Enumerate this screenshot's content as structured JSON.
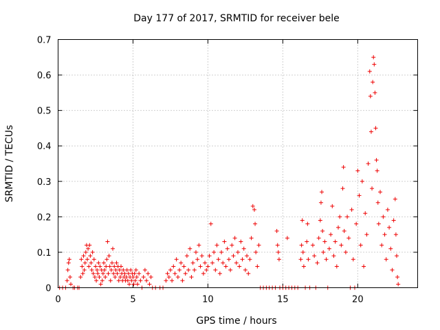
{
  "chart_data": {
    "type": "scatter",
    "title": "Day 177 of 2017, SRMTID for receiver bele",
    "xlabel": "GPS time / hours",
    "ylabel": "SRMTID / TECUs",
    "xlim": [
      0,
      24
    ],
    "ylim": [
      0,
      0.7
    ],
    "xticks": [
      "0",
      "5",
      "10",
      "15",
      "20"
    ],
    "xtick_values": [
      0,
      5,
      10,
      15,
      20
    ],
    "yticks": [
      "0",
      "0.1",
      "0.2",
      "0.3",
      "0.4",
      "0.5",
      "0.6",
      "0.7"
    ],
    "ytick_values": [
      0,
      0.1,
      0.2,
      0.3,
      0.4,
      0.5,
      0.6,
      0.7
    ],
    "grid": true,
    "marker": "+",
    "color": "#ee0000",
    "series": [
      {
        "name": "SRMTID",
        "points": [
          [
            0.1,
            0.0
          ],
          [
            0.3,
            0.0
          ],
          [
            0.5,
            0.0
          ],
          [
            0.6,
            0.02
          ],
          [
            0.65,
            0.05
          ],
          [
            0.7,
            0.07
          ],
          [
            0.75,
            0.08
          ],
          [
            0.8,
            0.03
          ],
          [
            0.85,
            0.01
          ],
          [
            1.0,
            0.0
          ],
          [
            1.1,
            0.0
          ],
          [
            1.3,
            0.0
          ],
          [
            1.4,
            0.0
          ],
          [
            1.5,
            0.03
          ],
          [
            1.55,
            0.08
          ],
          [
            1.6,
            0.06
          ],
          [
            1.65,
            0.04
          ],
          [
            1.7,
            0.09
          ],
          [
            1.75,
            0.05
          ],
          [
            1.8,
            0.07
          ],
          [
            1.85,
            0.1
          ],
          [
            1.9,
            0.12
          ],
          [
            1.95,
            0.08
          ],
          [
            2.0,
            0.11
          ],
          [
            2.05,
            0.06
          ],
          [
            2.1,
            0.12
          ],
          [
            2.15,
            0.09
          ],
          [
            2.2,
            0.07
          ],
          [
            2.25,
            0.05
          ],
          [
            2.3,
            0.1
          ],
          [
            2.35,
            0.04
          ],
          [
            2.4,
            0.08
          ],
          [
            2.45,
            0.03
          ],
          [
            2.5,
            0.06
          ],
          [
            2.55,
            0.02
          ],
          [
            2.6,
            0.05
          ],
          [
            2.65,
            0.04
          ],
          [
            2.7,
            0.07
          ],
          [
            2.75,
            0.03
          ],
          [
            2.8,
            0.06
          ],
          [
            2.85,
            0.01
          ],
          [
            2.9,
            0.05
          ],
          [
            2.95,
            0.02
          ],
          [
            3.0,
            0.04
          ],
          [
            3.05,
            0.07
          ],
          [
            3.1,
            0.05
          ],
          [
            3.15,
            0.03
          ],
          [
            3.2,
            0.06
          ],
          [
            3.25,
            0.08
          ],
          [
            3.3,
            0.13
          ],
          [
            3.35,
            0.04
          ],
          [
            3.4,
            0.09
          ],
          [
            3.45,
            0.06
          ],
          [
            3.5,
            0.02
          ],
          [
            3.55,
            0.05
          ],
          [
            3.6,
            0.07
          ],
          [
            3.65,
            0.11
          ],
          [
            3.7,
            0.04
          ],
          [
            3.75,
            0.06
          ],
          [
            3.8,
            0.03
          ],
          [
            3.85,
            0.05
          ],
          [
            3.9,
            0.07
          ],
          [
            3.95,
            0.04
          ],
          [
            4.0,
            0.06
          ],
          [
            4.05,
            0.02
          ],
          [
            4.1,
            0.05
          ],
          [
            4.15,
            0.03
          ],
          [
            4.2,
            0.06
          ],
          [
            4.25,
            0.04
          ],
          [
            4.3,
            0.02
          ],
          [
            4.35,
            0.05
          ],
          [
            4.4,
            0.03
          ],
          [
            4.45,
            0.04
          ],
          [
            4.5,
            0.02
          ],
          [
            4.55,
            0.03
          ],
          [
            4.6,
            0.05
          ],
          [
            4.65,
            0.02
          ],
          [
            4.7,
            0.04
          ],
          [
            4.75,
            0.01
          ],
          [
            4.8,
            0.03
          ],
          [
            4.85,
            0.05
          ],
          [
            4.9,
            0.02
          ],
          [
            4.95,
            0.04
          ],
          [
            5.0,
            0.03
          ],
          [
            5.05,
            0.01
          ],
          [
            5.1,
            0.04
          ],
          [
            5.15,
            0.02
          ],
          [
            5.2,
            0.05
          ],
          [
            5.25,
            0.03
          ],
          [
            5.3,
            0.01
          ],
          [
            5.4,
            0.04
          ],
          [
            5.5,
            0.02
          ],
          [
            5.6,
            0.0
          ],
          [
            5.7,
            0.03
          ],
          [
            5.8,
            0.05
          ],
          [
            5.9,
            0.02
          ],
          [
            6.0,
            0.04
          ],
          [
            6.1,
            0.01
          ],
          [
            6.2,
            0.03
          ],
          [
            6.3,
            0.0
          ],
          [
            6.5,
            0.0
          ],
          [
            6.8,
            0.0
          ],
          [
            7.0,
            0.0
          ],
          [
            7.2,
            0.02
          ],
          [
            7.3,
            0.04
          ],
          [
            7.4,
            0.03
          ],
          [
            7.5,
            0.05
          ],
          [
            7.6,
            0.02
          ],
          [
            7.7,
            0.06
          ],
          [
            7.8,
            0.04
          ],
          [
            7.9,
            0.08
          ],
          [
            8.0,
            0.03
          ],
          [
            8.1,
            0.05
          ],
          [
            8.2,
            0.07
          ],
          [
            8.3,
            0.02
          ],
          [
            8.4,
            0.06
          ],
          [
            8.5,
            0.04
          ],
          [
            8.6,
            0.09
          ],
          [
            8.7,
            0.05
          ],
          [
            8.8,
            0.11
          ],
          [
            8.9,
            0.03
          ],
          [
            9.0,
            0.07
          ],
          [
            9.1,
            0.05
          ],
          [
            9.2,
            0.1
          ],
          [
            9.3,
            0.08
          ],
          [
            9.4,
            0.12
          ],
          [
            9.5,
            0.06
          ],
          [
            9.6,
            0.09
          ],
          [
            9.7,
            0.04
          ],
          [
            9.8,
            0.07
          ],
          [
            9.9,
            0.05
          ],
          [
            10.0,
            0.06
          ],
          [
            10.1,
            0.09
          ],
          [
            10.2,
            0.18
          ],
          [
            10.3,
            0.07
          ],
          [
            10.4,
            0.1
          ],
          [
            10.5,
            0.05
          ],
          [
            10.6,
            0.12
          ],
          [
            10.7,
            0.08
          ],
          [
            10.8,
            0.04
          ],
          [
            10.9,
            0.1
          ],
          [
            11.0,
            0.07
          ],
          [
            11.1,
            0.13
          ],
          [
            11.2,
            0.06
          ],
          [
            11.3,
            0.11
          ],
          [
            11.4,
            0.08
          ],
          [
            11.5,
            0.05
          ],
          [
            11.6,
            0.12
          ],
          [
            11.7,
            0.09
          ],
          [
            11.8,
            0.14
          ],
          [
            11.9,
            0.07
          ],
          [
            12.0,
            0.1
          ],
          [
            12.1,
            0.06
          ],
          [
            12.2,
            0.13
          ],
          [
            12.3,
            0.08
          ],
          [
            12.4,
            0.11
          ],
          [
            12.5,
            0.05
          ],
          [
            12.6,
            0.09
          ],
          [
            12.7,
            0.04
          ],
          [
            12.8,
            0.08
          ],
          [
            12.9,
            0.14
          ],
          [
            13.0,
            0.23
          ],
          [
            13.1,
            0.22
          ],
          [
            13.15,
            0.18
          ],
          [
            13.2,
            0.1
          ],
          [
            13.3,
            0.06
          ],
          [
            13.4,
            0.12
          ],
          [
            13.5,
            0.0
          ],
          [
            13.7,
            0.0
          ],
          [
            13.9,
            0.0
          ],
          [
            14.1,
            0.0
          ],
          [
            14.3,
            0.0
          ],
          [
            14.5,
            0.0
          ],
          [
            14.6,
            0.16
          ],
          [
            14.65,
            0.12
          ],
          [
            14.7,
            0.1
          ],
          [
            14.75,
            0.08
          ],
          [
            14.8,
            0.0
          ],
          [
            15.0,
            0.0
          ],
          [
            15.2,
            0.0
          ],
          [
            15.3,
            0.14
          ],
          [
            15.4,
            0.0
          ],
          [
            15.6,
            0.0
          ],
          [
            15.8,
            0.0
          ],
          [
            16.0,
            0.0
          ],
          [
            16.2,
            0.08
          ],
          [
            16.25,
            0.12
          ],
          [
            16.3,
            0.19
          ],
          [
            16.35,
            0.1
          ],
          [
            16.4,
            0.06
          ],
          [
            16.5,
            0.0
          ],
          [
            16.6,
            0.13
          ],
          [
            16.65,
            0.18
          ],
          [
            16.7,
            0.08
          ],
          [
            16.8,
            0.0
          ],
          [
            17.0,
            0.12
          ],
          [
            17.1,
            0.09
          ],
          [
            17.2,
            0.0
          ],
          [
            17.3,
            0.07
          ],
          [
            17.4,
            0.14
          ],
          [
            17.5,
            0.19
          ],
          [
            17.55,
            0.24
          ],
          [
            17.6,
            0.27
          ],
          [
            17.65,
            0.16
          ],
          [
            17.7,
            0.1
          ],
          [
            17.8,
            0.13
          ],
          [
            17.9,
            0.08
          ],
          [
            18.0,
            0.0
          ],
          [
            18.1,
            0.11
          ],
          [
            18.2,
            0.15
          ],
          [
            18.3,
            0.23
          ],
          [
            18.4,
            0.09
          ],
          [
            18.5,
            0.13
          ],
          [
            18.6,
            0.06
          ],
          [
            18.7,
            0.17
          ],
          [
            18.8,
            0.2
          ],
          [
            18.9,
            0.12
          ],
          [
            19.0,
            0.28
          ],
          [
            19.05,
            0.34
          ],
          [
            19.1,
            0.16
          ],
          [
            19.2,
            0.1
          ],
          [
            19.3,
            0.2
          ],
          [
            19.4,
            0.14
          ],
          [
            19.5,
            0.0
          ],
          [
            19.6,
            0.22
          ],
          [
            19.7,
            0.08
          ],
          [
            19.8,
            0.0
          ],
          [
            19.9,
            0.18
          ],
          [
            20.0,
            0.33
          ],
          [
            20.1,
            0.26
          ],
          [
            20.2,
            0.12
          ],
          [
            20.3,
            0.3
          ],
          [
            20.4,
            0.06
          ],
          [
            20.5,
            0.21
          ],
          [
            20.6,
            0.15
          ],
          [
            20.7,
            0.35
          ],
          [
            20.8,
            0.61
          ],
          [
            20.85,
            0.54
          ],
          [
            20.9,
            0.44
          ],
          [
            20.95,
            0.28
          ],
          [
            21.0,
            0.58
          ],
          [
            21.05,
            0.65
          ],
          [
            21.1,
            0.63
          ],
          [
            21.15,
            0.55
          ],
          [
            21.2,
            0.45
          ],
          [
            21.25,
            0.36
          ],
          [
            21.3,
            0.33
          ],
          [
            21.35,
            0.24
          ],
          [
            21.4,
            0.18
          ],
          [
            21.5,
            0.27
          ],
          [
            21.6,
            0.12
          ],
          [
            21.7,
            0.2
          ],
          [
            21.8,
            0.15
          ],
          [
            21.9,
            0.08
          ],
          [
            22.0,
            0.22
          ],
          [
            22.1,
            0.17
          ],
          [
            22.2,
            0.11
          ],
          [
            22.3,
            0.05
          ],
          [
            22.4,
            0.19
          ],
          [
            22.5,
            0.25
          ],
          [
            22.55,
            0.15
          ],
          [
            22.6,
            0.09
          ],
          [
            22.65,
            0.03
          ],
          [
            22.7,
            0.01
          ]
        ]
      }
    ]
  }
}
